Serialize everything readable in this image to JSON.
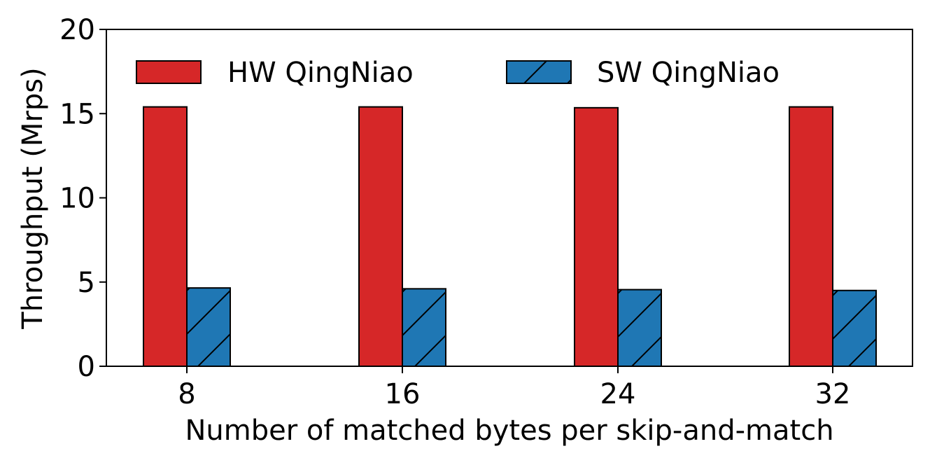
{
  "chart_data": {
    "type": "bar",
    "categories": [
      "8",
      "16",
      "24",
      "32"
    ],
    "series": [
      {
        "name": "HW QingNiao",
        "values": [
          15.4,
          15.4,
          15.35,
          15.4
        ],
        "color": "#d62728",
        "hatch": "none"
      },
      {
        "name": "SW QingNiao",
        "values": [
          4.65,
          4.6,
          4.55,
          4.5
        ],
        "color": "#1f77b4",
        "hatch": "forward-diagonal"
      }
    ],
    "xlabel": "Number of matched bytes per skip-and-match",
    "ylabel": "Throughput (Mrps)",
    "ylim": [
      0,
      20
    ],
    "yticks": [
      "0",
      "5",
      "10",
      "15",
      "20"
    ],
    "grid": false,
    "legend": "top, horizontal"
  }
}
